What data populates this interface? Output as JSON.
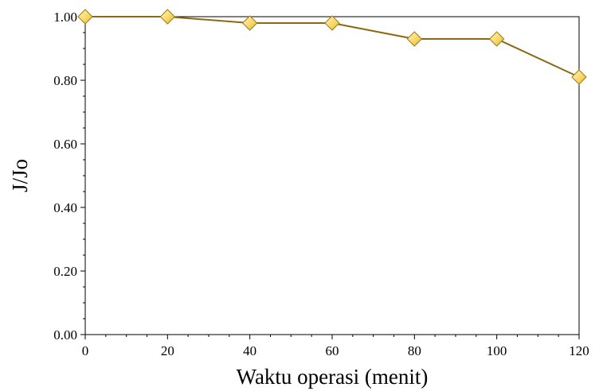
{
  "chart_data": {
    "type": "line",
    "xlabel": "Waktu operasi (menit)",
    "ylabel": "J/Jo",
    "xlim": [
      0,
      120
    ],
    "ylim": [
      0.0,
      1.0
    ],
    "x_ticks": [
      0,
      20,
      40,
      60,
      80,
      100,
      120
    ],
    "x_tick_labels": [
      "0",
      "20",
      "40",
      "60",
      "80",
      "100",
      "120"
    ],
    "y_ticks": [
      0.0,
      0.2,
      0.4,
      0.6,
      0.8,
      1.0
    ],
    "y_tick_labels": [
      "0.00",
      "0.20",
      "0.40",
      "0.60",
      "0.80",
      "1.00"
    ],
    "grid": false,
    "legend": "none",
    "series": [
      {
        "x": [
          0,
          20,
          40,
          60,
          80,
          100,
          120
        ],
        "values": [
          1.0,
          1.0,
          0.98,
          0.98,
          0.93,
          0.93,
          0.81
        ],
        "line_color": "#8B6914",
        "marker": "diamond",
        "marker_color": "#F2C94C"
      }
    ]
  }
}
